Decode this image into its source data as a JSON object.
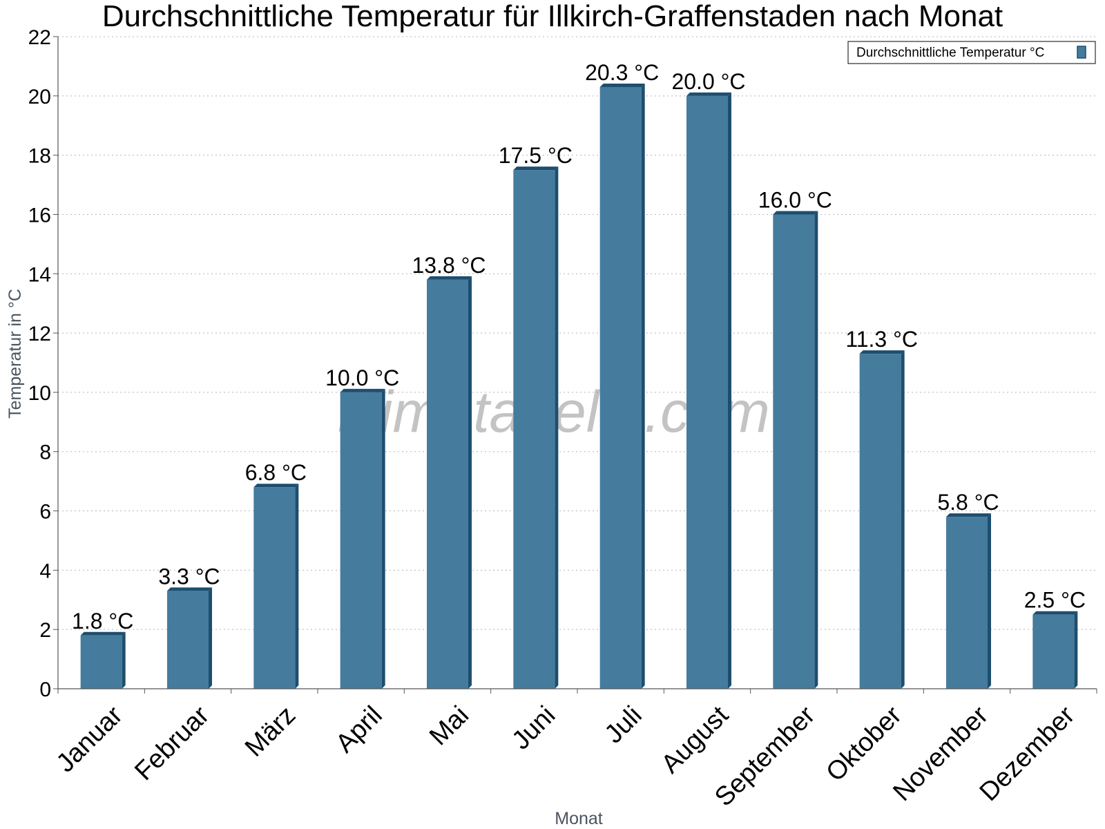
{
  "chart_data": {
    "type": "bar",
    "title": "Durchschnittliche Temperatur für Illkirch-Graffenstaden nach Monat",
    "xlabel": "Monat",
    "ylabel": "Temperatur in °C",
    "ylim": [
      0,
      22
    ],
    "yticks": [
      0,
      2,
      4,
      6,
      8,
      10,
      12,
      14,
      16,
      18,
      20,
      22
    ],
    "grid": true,
    "legend_position": "top-right",
    "categories": [
      "Januar",
      "Februar",
      "März",
      "April",
      "Mai",
      "Juni",
      "Juli",
      "August",
      "September",
      "Oktober",
      "November",
      "Dezember"
    ],
    "series": [
      {
        "name": "Durchschnittliche Temperatur °C",
        "values": [
          1.8,
          3.3,
          6.8,
          10.0,
          13.8,
          17.5,
          20.3,
          20.0,
          16.0,
          11.3,
          5.8,
          2.5
        ],
        "labels": [
          "1.8 °C",
          "3.3 °C",
          "6.8 °C",
          "10.0 °C",
          "13.8 °C",
          "17.5 °C",
          "20.3 °C",
          "20.0 °C",
          "16.0 °C",
          "11.3 °C",
          "5.8 °C",
          "2.5 °C"
        ],
        "color": "#457b9d",
        "edge_color": "#1d4e6f"
      }
    ],
    "watermark": "klimatabelle.com"
  }
}
